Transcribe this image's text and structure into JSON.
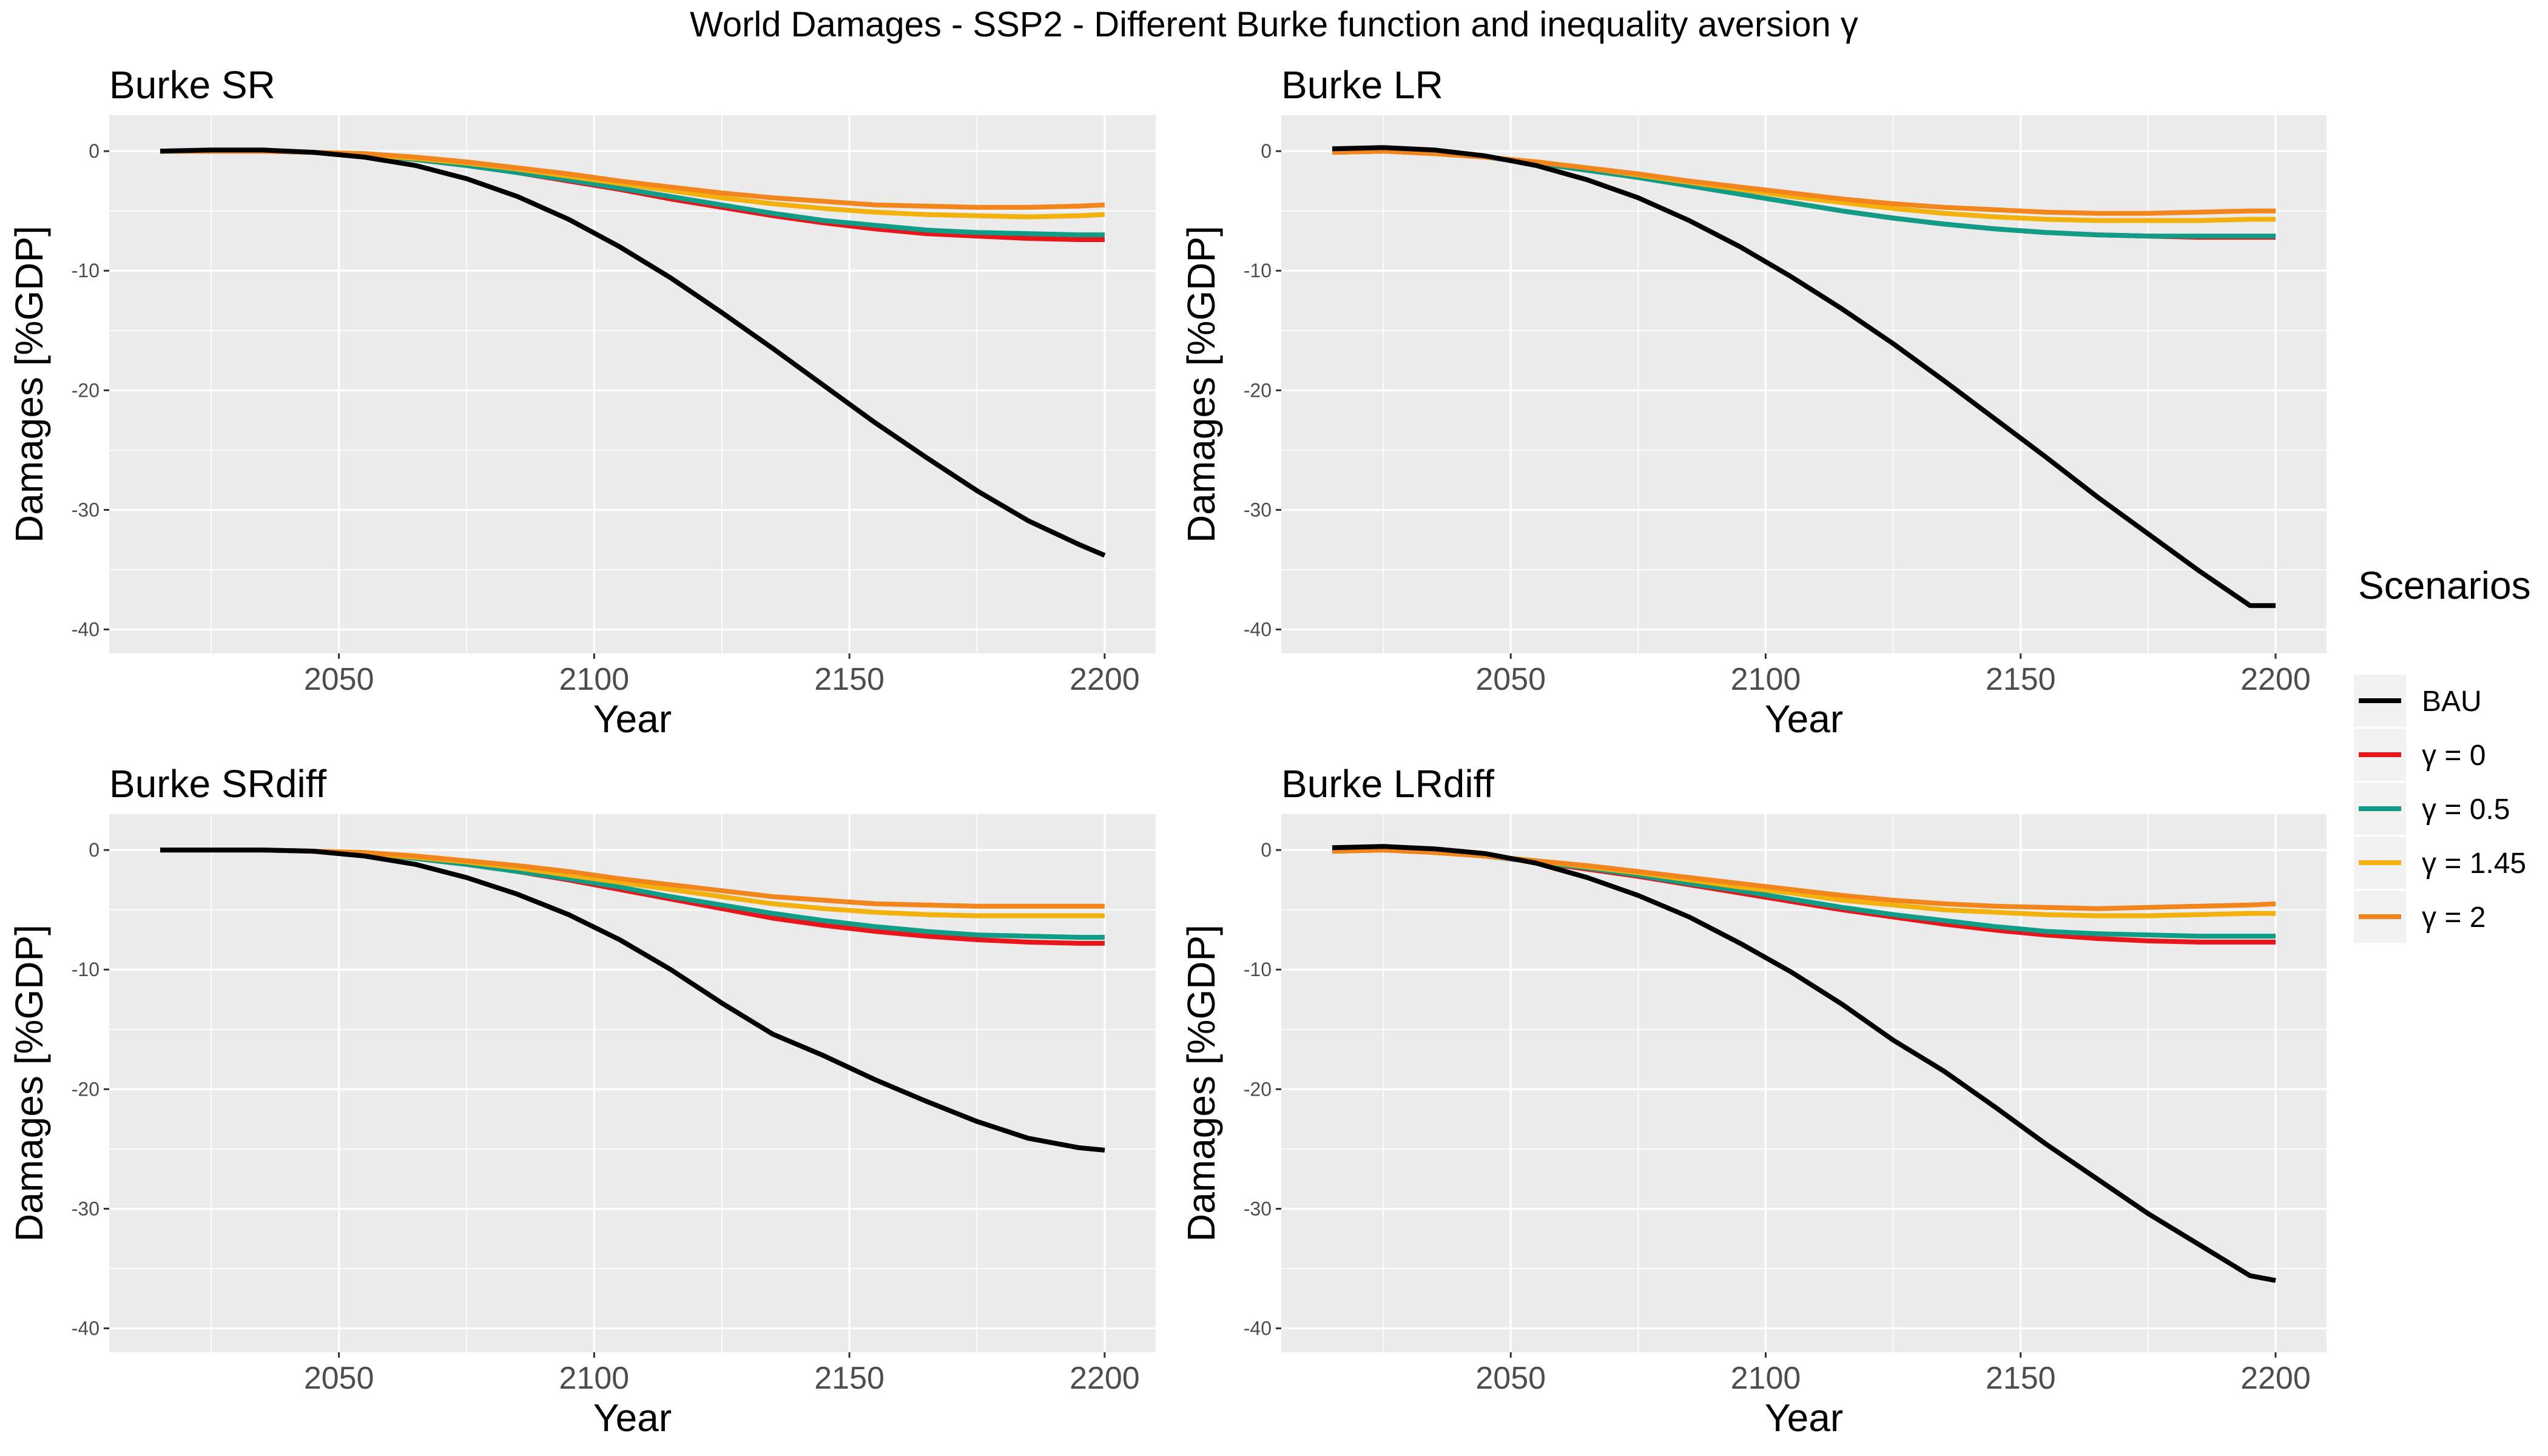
{
  "title": "World Damages - SSP2 - Different Burke function and inequality aversion γ",
  "legend": {
    "title": "Scenarios",
    "entries": [
      {
        "key": "bau",
        "label": "BAU",
        "color": "#000000"
      },
      {
        "key": "g0",
        "label": "γ = 0",
        "color": "#E8161A"
      },
      {
        "key": "g05",
        "label": "γ = 0.5",
        "color": "#0F9D87"
      },
      {
        "key": "g145",
        "label": "γ = 1.45",
        "color": "#F2B10C"
      },
      {
        "key": "g2",
        "label": "γ = 2",
        "color": "#F2861C"
      }
    ]
  },
  "chart_data": [
    {
      "type": "line",
      "title": "Burke SR",
      "xlabel": "Year",
      "ylabel": "Damages [%GDP]",
      "xlim": [
        2005,
        2210
      ],
      "ylim": [
        -42,
        3
      ],
      "xticks": [
        2050,
        2100,
        2150,
        2200
      ],
      "yticks": [
        0,
        -10,
        -20,
        -30,
        -40
      ],
      "grid": true,
      "x": [
        2015,
        2025,
        2035,
        2045,
        2055,
        2065,
        2075,
        2085,
        2095,
        2105,
        2115,
        2125,
        2135,
        2145,
        2155,
        2165,
        2175,
        2185,
        2195,
        2200
      ],
      "series": [
        {
          "name": "BAU",
          "key": "bau",
          "values": [
            0,
            0.1,
            0.1,
            -0.1,
            -0.5,
            -1.2,
            -2.3,
            -3.8,
            -5.7,
            -8.0,
            -10.6,
            -13.5,
            -16.5,
            -19.6,
            -22.7,
            -25.6,
            -28.4,
            -30.9,
            -32.9,
            -33.8
          ]
        },
        {
          "name": "γ = 0",
          "key": "g0",
          "values": [
            0,
            0,
            0,
            -0.1,
            -0.3,
            -0.7,
            -1.2,
            -1.8,
            -2.5,
            -3.2,
            -4.0,
            -4.7,
            -5.4,
            -6.0,
            -6.5,
            -6.9,
            -7.1,
            -7.3,
            -7.4,
            -7.4
          ]
        },
        {
          "name": "γ = 0.5",
          "key": "g05",
          "values": [
            0,
            0,
            0,
            -0.1,
            -0.3,
            -0.7,
            -1.2,
            -1.8,
            -2.4,
            -3.1,
            -3.8,
            -4.5,
            -5.2,
            -5.8,
            -6.2,
            -6.6,
            -6.8,
            -6.9,
            -7.0,
            -7.0
          ]
        },
        {
          "name": "γ = 1.45",
          "key": "g145",
          "values": [
            0,
            0,
            0,
            -0.1,
            -0.3,
            -0.6,
            -1.0,
            -1.5,
            -2.1,
            -2.7,
            -3.3,
            -3.9,
            -4.4,
            -4.8,
            -5.1,
            -5.3,
            -5.4,
            -5.5,
            -5.4,
            -5.3
          ]
        },
        {
          "name": "γ = 2",
          "key": "g2",
          "values": [
            0,
            0,
            0,
            -0.1,
            -0.2,
            -0.5,
            -0.9,
            -1.4,
            -1.9,
            -2.5,
            -3.0,
            -3.5,
            -3.9,
            -4.2,
            -4.5,
            -4.6,
            -4.7,
            -4.7,
            -4.6,
            -4.5
          ]
        }
      ]
    },
    {
      "type": "line",
      "title": "Burke LR",
      "xlabel": "Year",
      "ylabel": "Damages [%GDP]",
      "xlim": [
        2005,
        2210
      ],
      "ylim": [
        -42,
        3
      ],
      "xticks": [
        2050,
        2100,
        2150,
        2200
      ],
      "yticks": [
        0,
        -10,
        -20,
        -30,
        -40
      ],
      "grid": true,
      "x": [
        2015,
        2025,
        2035,
        2045,
        2055,
        2065,
        2075,
        2085,
        2095,
        2105,
        2115,
        2125,
        2135,
        2145,
        2155,
        2165,
        2175,
        2185,
        2195,
        2200
      ],
      "series": [
        {
          "name": "BAU",
          "key": "bau",
          "values": [
            0.2,
            0.3,
            0.1,
            -0.4,
            -1.2,
            -2.4,
            -3.9,
            -5.8,
            -8.0,
            -10.5,
            -13.2,
            -16.1,
            -19.2,
            -22.4,
            -25.6,
            -28.9,
            -32.0,
            -35.1,
            -38.0,
            -38.0
          ]
        },
        {
          "name": "γ = 0",
          "key": "g0",
          "values": [
            -0.1,
            0,
            -0.2,
            -0.5,
            -1.0,
            -1.6,
            -2.2,
            -2.9,
            -3.6,
            -4.3,
            -5.0,
            -5.6,
            -6.1,
            -6.5,
            -6.8,
            -7.0,
            -7.1,
            -7.2,
            -7.2,
            -7.2
          ]
        },
        {
          "name": "γ = 0.5",
          "key": "g05",
          "values": [
            -0.1,
            0,
            -0.2,
            -0.5,
            -1.0,
            -1.6,
            -2.2,
            -2.9,
            -3.6,
            -4.3,
            -5.0,
            -5.6,
            -6.1,
            -6.5,
            -6.8,
            -7.0,
            -7.1,
            -7.1,
            -7.1,
            -7.1
          ]
        },
        {
          "name": "γ = 1.45",
          "key": "g145",
          "values": [
            -0.1,
            0,
            -0.2,
            -0.5,
            -0.9,
            -1.4,
            -2.0,
            -2.6,
            -3.2,
            -3.8,
            -4.3,
            -4.8,
            -5.2,
            -5.5,
            -5.7,
            -5.8,
            -5.8,
            -5.8,
            -5.7,
            -5.7
          ]
        },
        {
          "name": "γ = 2",
          "key": "g2",
          "values": [
            -0.1,
            0,
            -0.2,
            -0.5,
            -0.9,
            -1.4,
            -1.9,
            -2.5,
            -3.0,
            -3.5,
            -4.0,
            -4.4,
            -4.7,
            -4.9,
            -5.1,
            -5.2,
            -5.2,
            -5.1,
            -5.0,
            -5.0
          ]
        }
      ]
    },
    {
      "type": "line",
      "title": "Burke SRdiff",
      "xlabel": "Year",
      "ylabel": "Damages [%GDP]",
      "xlim": [
        2005,
        2210
      ],
      "ylim": [
        -42,
        3
      ],
      "xticks": [
        2050,
        2100,
        2150,
        2200
      ],
      "yticks": [
        0,
        -10,
        -20,
        -30,
        -40
      ],
      "grid": true,
      "x": [
        2015,
        2025,
        2035,
        2045,
        2055,
        2065,
        2075,
        2085,
        2095,
        2105,
        2115,
        2125,
        2135,
        2145,
        2155,
        2165,
        2175,
        2185,
        2195,
        2200
      ],
      "series": [
        {
          "name": "BAU",
          "key": "bau",
          "values": [
            0,
            0,
            0,
            -0.1,
            -0.5,
            -1.2,
            -2.3,
            -3.7,
            -5.4,
            -7.5,
            -10.0,
            -12.8,
            -15.4,
            -17.2,
            -19.2,
            -21.0,
            -22.7,
            -24.1,
            -24.9,
            -25.1
          ]
        },
        {
          "name": "γ = 0",
          "key": "g0",
          "values": [
            0,
            0,
            0,
            -0.1,
            -0.3,
            -0.7,
            -1.2,
            -1.8,
            -2.5,
            -3.3,
            -4.1,
            -4.9,
            -5.7,
            -6.3,
            -6.8,
            -7.2,
            -7.5,
            -7.7,
            -7.8,
            -7.8
          ]
        },
        {
          "name": "γ = 0.5",
          "key": "g05",
          "values": [
            0,
            0,
            0,
            -0.1,
            -0.3,
            -0.7,
            -1.2,
            -1.8,
            -2.4,
            -3.1,
            -3.9,
            -4.6,
            -5.3,
            -5.9,
            -6.4,
            -6.8,
            -7.1,
            -7.2,
            -7.3,
            -7.3
          ]
        },
        {
          "name": "γ = 1.45",
          "key": "g145",
          "values": [
            0,
            0,
            0,
            -0.1,
            -0.3,
            -0.6,
            -1.0,
            -1.5,
            -2.1,
            -2.7,
            -3.3,
            -3.9,
            -4.5,
            -4.9,
            -5.2,
            -5.4,
            -5.5,
            -5.5,
            -5.5,
            -5.5
          ]
        },
        {
          "name": "γ = 2",
          "key": "g2",
          "values": [
            0,
            0,
            0,
            -0.1,
            -0.2,
            -0.5,
            -0.9,
            -1.3,
            -1.8,
            -2.4,
            -2.9,
            -3.4,
            -3.9,
            -4.2,
            -4.5,
            -4.6,
            -4.7,
            -4.7,
            -4.7,
            -4.7
          ]
        }
      ]
    },
    {
      "type": "line",
      "title": "Burke LRdiff",
      "xlabel": "Year",
      "ylabel": "Damages [%GDP]",
      "xlim": [
        2005,
        2210
      ],
      "ylim": [
        -42,
        3
      ],
      "xticks": [
        2050,
        2100,
        2150,
        2200
      ],
      "yticks": [
        0,
        -10,
        -20,
        -30,
        -40
      ],
      "grid": true,
      "x": [
        2015,
        2025,
        2035,
        2045,
        2055,
        2065,
        2075,
        2085,
        2095,
        2105,
        2115,
        2125,
        2135,
        2145,
        2155,
        2165,
        2175,
        2185,
        2195,
        2200
      ],
      "series": [
        {
          "name": "BAU",
          "key": "bau",
          "values": [
            0.2,
            0.3,
            0.1,
            -0.3,
            -1.1,
            -2.3,
            -3.8,
            -5.6,
            -7.8,
            -10.2,
            -12.9,
            -15.9,
            -18.5,
            -21.5,
            -24.6,
            -27.5,
            -30.4,
            -33.0,
            -35.6,
            -36.0
          ]
        },
        {
          "name": "γ = 0",
          "key": "g0",
          "values": [
            -0.1,
            0,
            -0.2,
            -0.5,
            -1.0,
            -1.6,
            -2.2,
            -2.9,
            -3.6,
            -4.3,
            -5.0,
            -5.6,
            -6.2,
            -6.7,
            -7.1,
            -7.4,
            -7.6,
            -7.7,
            -7.7,
            -7.7
          ]
        },
        {
          "name": "γ = 0.5",
          "key": "g05",
          "values": [
            -0.1,
            0,
            -0.2,
            -0.5,
            -1.0,
            -1.5,
            -2.1,
            -2.8,
            -3.4,
            -4.1,
            -4.8,
            -5.4,
            -5.9,
            -6.4,
            -6.8,
            -7.0,
            -7.1,
            -7.2,
            -7.2,
            -7.2
          ]
        },
        {
          "name": "γ = 1.45",
          "key": "g145",
          "values": [
            -0.1,
            0,
            -0.2,
            -0.5,
            -0.9,
            -1.4,
            -1.9,
            -2.5,
            -3.1,
            -3.6,
            -4.2,
            -4.6,
            -5.0,
            -5.2,
            -5.4,
            -5.5,
            -5.5,
            -5.4,
            -5.3,
            -5.3
          ]
        },
        {
          "name": "γ = 2",
          "key": "g2",
          "values": [
            -0.1,
            0,
            -0.2,
            -0.5,
            -0.9,
            -1.3,
            -1.8,
            -2.3,
            -2.8,
            -3.3,
            -3.8,
            -4.2,
            -4.5,
            -4.7,
            -4.8,
            -4.9,
            -4.8,
            -4.7,
            -4.6,
            -4.5
          ]
        }
      ]
    }
  ]
}
